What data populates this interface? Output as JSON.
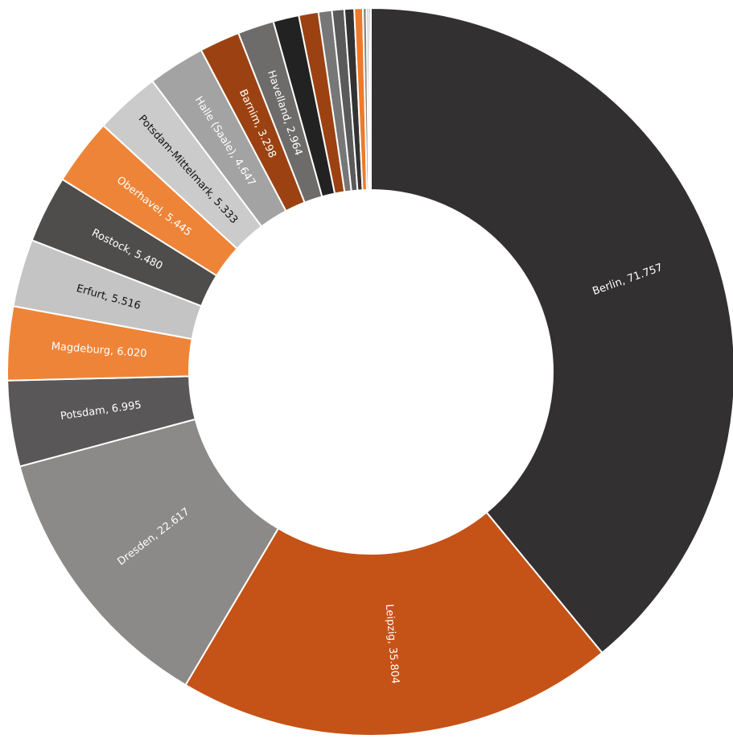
{
  "chart_data": {
    "type": "donut",
    "categories": [
      "Berlin",
      "Leipzig",
      "Dresden",
      "Potsdam",
      "Magdeburg",
      "Erfurt",
      "Rostock",
      "Oberhavel",
      "Potsdam-Mittelmark",
      "Halle (Saale)",
      "Barnim",
      "Havelland",
      null,
      null,
      null,
      null,
      null,
      null,
      null,
      null,
      null
    ],
    "values": [
      71757,
      35804,
      22617,
      6995,
      6020,
      5516,
      5480,
      5445,
      5333,
      4647,
      3298,
      2964,
      2100,
      1600,
      1100,
      1000,
      800,
      700,
      300,
      200,
      150
    ],
    "value_labels": [
      "Berlin, 71.757",
      "Leipzig, 35.804",
      "Dresden, 22.617",
      "Potsdam, 6.995",
      "Magdeburg, 6.020",
      "Erfurt, 5.516",
      "Rostock, 5.480",
      "Oberhavel, 5.445",
      "Potsdam-Mittelmark, 5.333",
      "Halle (Saale), 4.647",
      "Barnim, 3.298",
      "Havelland, 2.964",
      null,
      null,
      null,
      null,
      null,
      null,
      null,
      null,
      null
    ],
    "colors": [
      "#333031",
      "#c55217",
      "#8c8a88",
      "#595757",
      "#ee8438",
      "#c4c4c4",
      "#4f4d4c",
      "#ee8438",
      "#cbcbcb",
      "#a3a3a3",
      "#9c4212",
      "#6e6c6b",
      "#222222",
      "#9c4212",
      "#777777",
      "#5a5a5a",
      "#333333",
      "#ee7a2a",
      "#888888",
      "#aaaaaa",
      "#444444"
    ]
  }
}
